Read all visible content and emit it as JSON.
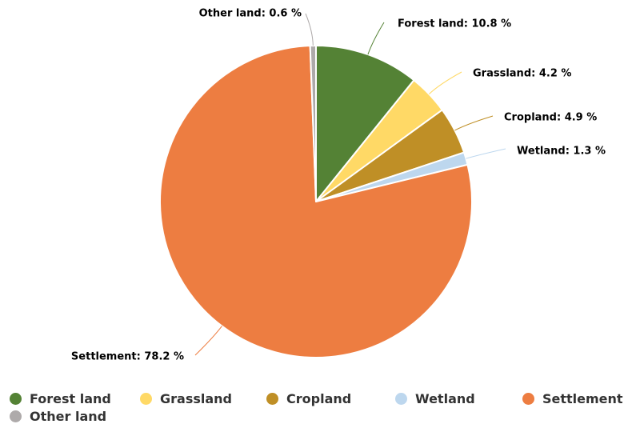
{
  "chart_data": {
    "type": "pie",
    "title": "",
    "slices": [
      {
        "name": "Forest land",
        "value": 10.8,
        "label": "Forest land: 10.8 %",
        "color": "#548235"
      },
      {
        "name": "Grassland",
        "value": 4.2,
        "label": "Grassland: 4.2 %",
        "color": "#ffd966"
      },
      {
        "name": "Cropland",
        "value": 4.9,
        "label": "Cropland: 4.9 %",
        "color": "#bf8f26"
      },
      {
        "name": "Wetland",
        "value": 1.3,
        "label": "Wetland: 1.3 %",
        "color": "#bdd7ee"
      },
      {
        "name": "Settlement",
        "value": 78.2,
        "label": "Settlement: 78.2 %",
        "color": "#ed7d41"
      },
      {
        "name": "Other land",
        "value": 0.6,
        "label": "Other land: 0.6 %",
        "color": "#aeaaaa"
      }
    ],
    "unit": "%",
    "legend_position": "bottom",
    "start_angle_deg": 0,
    "direction": "clockwise"
  },
  "legend": {
    "items": [
      {
        "label": "Forest land",
        "color": "#548235"
      },
      {
        "label": "Grassland",
        "color": "#ffd966"
      },
      {
        "label": "Cropland",
        "color": "#bf8f26"
      },
      {
        "label": "Wetland",
        "color": "#bdd7ee"
      },
      {
        "label": "Settlement",
        "color": "#ed7d41"
      },
      {
        "label": "Other land",
        "color": "#aeaaaa"
      }
    ]
  }
}
